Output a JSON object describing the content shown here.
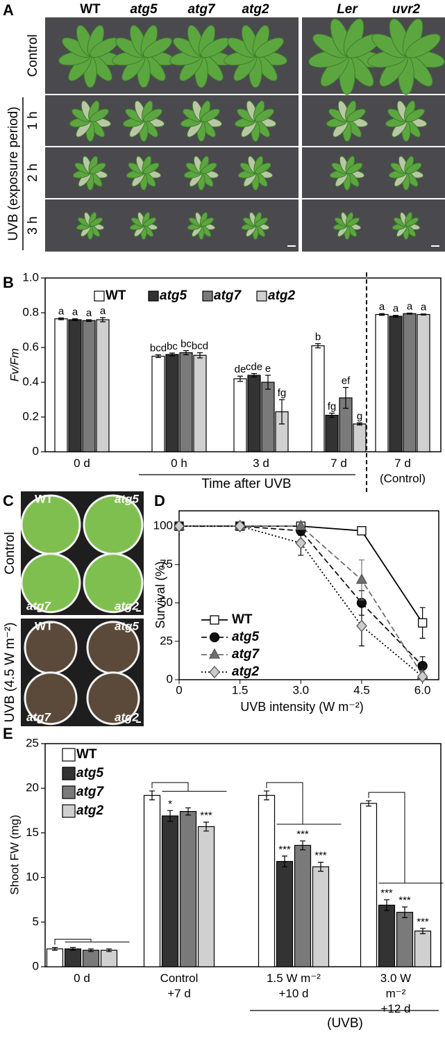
{
  "panel_labels": [
    "A",
    "B",
    "C",
    "D",
    "E"
  ],
  "panel_A": {
    "columns": [
      "WT",
      "atg5",
      "atg7",
      "atg2",
      "Ler",
      "uvr2"
    ],
    "rows": [
      "Control",
      "1 h",
      "2 h",
      "3 h"
    ],
    "row_group": "UVB (exposure period)"
  },
  "panel_C": {
    "genotypes": [
      "WT",
      "atg5",
      "atg7",
      "atg2"
    ],
    "rows": [
      "Control",
      "UVB (4.5 W m⁻²)"
    ]
  },
  "chart_data": [
    {
      "type": "bar",
      "ylabel": "Fv/Fm",
      "categories": [
        "0 d",
        "0 h",
        "3 d",
        "7 d",
        "7 d\n(Control)"
      ],
      "annotations": [
        "Time after UVB"
      ],
      "ylim": [
        0,
        1
      ],
      "yticks": [
        0,
        0.2,
        0.4,
        0.6,
        0.8,
        {
          "value": 1,
          "label": "1.0"
        }
      ],
      "legend": "top",
      "series": [
        {
          "name": "WT",
          "color": "#ffffff",
          "values": [
            0.765,
            0.55,
            0.42,
            0.61,
            0.79
          ],
          "errors": [
            0.005,
            0.008,
            0.015,
            0.012,
            0.005
          ],
          "letters": [
            "a",
            "bcd",
            "de",
            "b",
            "a"
          ]
        },
        {
          "name": "atg5",
          "color": "#333333",
          "values": [
            0.76,
            0.56,
            0.44,
            0.21,
            0.78
          ],
          "errors": [
            0.005,
            0.008,
            0.01,
            0.012,
            0.005
          ],
          "letters": [
            "a",
            "bc",
            "cde",
            "fg",
            "a"
          ]
        },
        {
          "name": "atg7",
          "color": "#7a7a7a",
          "values": [
            0.755,
            0.57,
            0.4,
            0.31,
            0.795
          ],
          "errors": [
            0.005,
            0.012,
            0.04,
            0.06,
            0.003
          ],
          "letters": [
            "a",
            "bc",
            "e",
            "ef",
            "a"
          ]
        },
        {
          "name": "atg2",
          "color": "#d0d0d0",
          "values": [
            0.76,
            0.555,
            0.23,
            0.16,
            0.79
          ],
          "errors": [
            0.012,
            0.015,
            0.07,
            0.006,
            0.003
          ],
          "letters": [
            "a",
            "bcd",
            "fg",
            "g",
            "a"
          ]
        }
      ]
    },
    {
      "type": "line",
      "xlabel": "UVB intensity (W m⁻²)",
      "ylabel": "Survival (%)",
      "x": [
        0,
        1.5,
        3,
        4.5,
        6
      ],
      "xlim": [
        0,
        6.4
      ],
      "ylim": [
        0,
        110
      ],
      "xticks": [
        0,
        1.5,
        {
          "value": 3,
          "label": "3.0"
        },
        4.5,
        {
          "value": 6,
          "label": "6.0"
        }
      ],
      "yticks": [
        0,
        25,
        50,
        75,
        100
      ],
      "legend": "lower left",
      "series": [
        {
          "name": "WT",
          "color": "#ffffff",
          "line_color": "#000000",
          "line_style": "solid",
          "marker": "square",
          "values": [
            100,
            100,
            100,
            97,
            37
          ],
          "errors": [
            0,
            0,
            0,
            0,
            10
          ]
        },
        {
          "name": "atg5",
          "color": "#111111",
          "line_color": "#111111",
          "line_style": "dashed",
          "marker": "circle",
          "values": [
            100,
            100,
            97,
            50,
            9
          ],
          "errors": [
            0,
            0,
            3,
            8,
            6
          ]
        },
        {
          "name": "atg7",
          "color": "#6e6e6e",
          "line_color": "#6e6e6e",
          "line_style": "dashed",
          "marker": "triangle",
          "values": [
            100,
            100,
            100,
            65,
            3
          ],
          "errors": [
            0,
            0,
            0,
            13,
            2
          ]
        },
        {
          "name": "atg2",
          "color": "#cccccc",
          "line_color": "#000000",
          "line_style": "dotted",
          "marker": "diamond",
          "values": [
            100,
            100,
            89,
            35,
            2
          ],
          "errors": [
            0,
            0,
            8,
            13,
            1
          ]
        }
      ]
    },
    {
      "type": "bar",
      "ylabel": "Shoot FW (mg)",
      "categories": [
        "0 d",
        "Control\n+7 d",
        "1.5 W m⁻²\n+10 d",
        "3.0 W m⁻²\n+12 d"
      ],
      "annotations": [
        "(UVB)"
      ],
      "ylim": [
        0,
        25
      ],
      "yticks": [
        0,
        5,
        10,
        15,
        20,
        25
      ],
      "legend": "upper left",
      "series": [
        {
          "name": "WT",
          "color": "#ffffff",
          "values": [
            2.0,
            19.2,
            19.2,
            18.3
          ],
          "errors": [
            0.15,
            0.5,
            0.5,
            0.3
          ]
        },
        {
          "name": "atg5",
          "color": "#333333",
          "values": [
            2.0,
            16.9,
            11.8,
            6.9
          ],
          "errors": [
            0.15,
            0.6,
            0.6,
            0.6
          ],
          "significance": [
            null,
            "*",
            "***",
            "***"
          ]
        },
        {
          "name": "atg7",
          "color": "#7a7a7a",
          "values": [
            1.85,
            17.4,
            13.6,
            6.1
          ],
          "errors": [
            0.15,
            0.4,
            0.5,
            0.6
          ],
          "significance": [
            null,
            null,
            "***",
            "***"
          ]
        },
        {
          "name": "atg2",
          "color": "#d0d0d0",
          "values": [
            1.85,
            15.7,
            11.2,
            4.0
          ],
          "errors": [
            0.15,
            0.5,
            0.5,
            0.3
          ],
          "significance": [
            null,
            "***",
            "***",
            "***"
          ]
        }
      ]
    }
  ]
}
